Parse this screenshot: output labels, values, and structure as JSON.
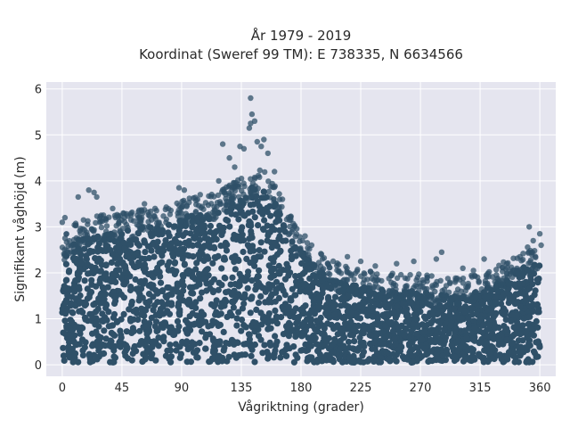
{
  "chart_data": {
    "type": "scatter",
    "title_line1": "År 1979 - 2019",
    "title_line2": "Koordinat (Sweref 99 TM): E 738335, N 6634566",
    "xlabel": "Vågriktning (grader)",
    "ylabel": "Signifikant våghöjd (m)",
    "xlim": [
      -12,
      372
    ],
    "ylim": [
      -0.25,
      6.15
    ],
    "xticks": [
      0,
      45,
      90,
      135,
      180,
      225,
      270,
      315,
      360
    ],
    "yticks": [
      0,
      1,
      2,
      3,
      4,
      5,
      6
    ],
    "grid": true,
    "background_color": "#e5e5ef",
    "marker_color": "#2f5068",
    "upper_envelope": {
      "x": [
        0,
        10,
        20,
        30,
        45,
        60,
        75,
        90,
        105,
        120,
        135,
        145,
        155,
        165,
        175,
        185,
        200,
        225,
        250,
        270,
        290,
        300,
        315,
        330,
        345,
        360
      ],
      "y": [
        2.4,
        2.7,
        2.8,
        2.9,
        2.9,
        3.0,
        3.0,
        3.2,
        3.3,
        3.4,
        3.7,
        3.9,
        3.8,
        3.3,
        2.7,
        2.3,
        1.9,
        1.7,
        1.6,
        1.6,
        1.5,
        1.5,
        1.6,
        1.8,
        2.1,
        2.3
      ]
    },
    "outliers": [
      {
        "x": 0,
        "y": 3.1
      },
      {
        "x": 2,
        "y": 3.2
      },
      {
        "x": 12,
        "y": 3.65
      },
      {
        "x": 20,
        "y": 3.8
      },
      {
        "x": 24,
        "y": 3.75
      },
      {
        "x": 26,
        "y": 3.65
      },
      {
        "x": 38,
        "y": 3.4
      },
      {
        "x": 46,
        "y": 3.3
      },
      {
        "x": 52,
        "y": 3.25
      },
      {
        "x": 62,
        "y": 3.5
      },
      {
        "x": 70,
        "y": 3.4
      },
      {
        "x": 88,
        "y": 3.85
      },
      {
        "x": 92,
        "y": 3.8
      },
      {
        "x": 104,
        "y": 3.7
      },
      {
        "x": 118,
        "y": 4.0
      },
      {
        "x": 121,
        "y": 4.8
      },
      {
        "x": 126,
        "y": 4.5
      },
      {
        "x": 130,
        "y": 4.3
      },
      {
        "x": 134,
        "y": 4.75
      },
      {
        "x": 137,
        "y": 4.7
      },
      {
        "x": 141,
        "y": 5.15
      },
      {
        "x": 142,
        "y": 5.25
      },
      {
        "x": 143,
        "y": 5.45
      },
      {
        "x": 142,
        "y": 5.8
      },
      {
        "x": 145,
        "y": 5.3
      },
      {
        "x": 147,
        "y": 4.85
      },
      {
        "x": 150,
        "y": 4.75
      },
      {
        "x": 152,
        "y": 4.9
      },
      {
        "x": 155,
        "y": 4.6
      },
      {
        "x": 160,
        "y": 4.2
      },
      {
        "x": 166,
        "y": 3.6
      },
      {
        "x": 175,
        "y": 3.0
      },
      {
        "x": 183,
        "y": 2.8
      },
      {
        "x": 188,
        "y": 2.6
      },
      {
        "x": 200,
        "y": 2.2
      },
      {
        "x": 215,
        "y": 2.35
      },
      {
        "x": 225,
        "y": 2.25
      },
      {
        "x": 236,
        "y": 2.15
      },
      {
        "x": 252,
        "y": 2.2
      },
      {
        "x": 265,
        "y": 2.25
      },
      {
        "x": 282,
        "y": 2.3
      },
      {
        "x": 286,
        "y": 2.45
      },
      {
        "x": 302,
        "y": 2.1
      },
      {
        "x": 310,
        "y": 2.05
      },
      {
        "x": 318,
        "y": 2.3
      },
      {
        "x": 335,
        "y": 2.2
      },
      {
        "x": 345,
        "y": 2.35
      },
      {
        "x": 352,
        "y": 3.0
      },
      {
        "x": 355,
        "y": 2.7
      },
      {
        "x": 360,
        "y": 2.85
      },
      {
        "x": 361,
        "y": 2.6
      }
    ]
  }
}
